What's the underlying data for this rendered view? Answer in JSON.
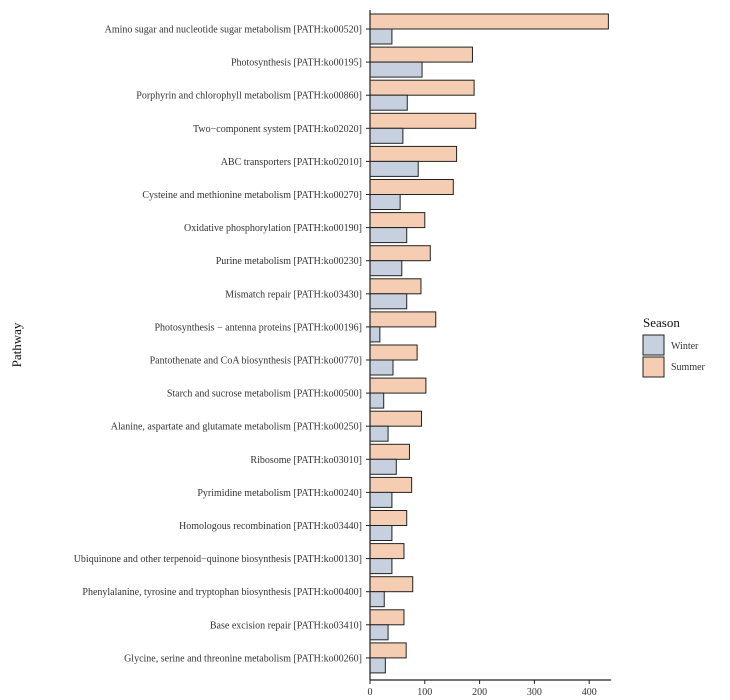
{
  "chart_data": {
    "type": "bar",
    "orientation": "horizontal",
    "title": "",
    "xlabel": "",
    "ylabel": "Pathway",
    "xlim": [
      0,
      440
    ],
    "xticks": [
      0,
      100,
      200,
      300,
      400
    ],
    "categories": [
      "Amino sugar and nucleotide sugar metabolism [PATH:ko00520]",
      "Photosynthesis [PATH:ko00195]",
      "Porphyrin and chlorophyll metabolism [PATH:ko00860]",
      "Two−component system [PATH:ko02020]",
      "ABC transporters [PATH:ko02010]",
      "Cysteine and methionine metabolism [PATH:ko00270]",
      "Oxidative phosphorylation [PATH:ko00190]",
      "Purine metabolism [PATH:ko00230]",
      "Mismatch repair [PATH:ko03430]",
      "Photosynthesis − antenna proteins [PATH:ko00196]",
      "Pantothenate and CoA biosynthesis [PATH:ko00770]",
      "Starch and sucrose metabolism [PATH:ko00500]",
      "Alanine, aspartate and glutamate metabolism [PATH:ko00250]",
      "Ribosome [PATH:ko03010]",
      "Pyrimidine metabolism [PATH:ko00240]",
      "Homologous recombination [PATH:ko03440]",
      "Ubiquinone and other terpenoid−quinone biosynthesis [PATH:ko00130]",
      "Phenylalanine, tyrosine and tryptophan biosynthesis [PATH:ko00400]",
      "Base excision repair [PATH:ko03410]",
      "Glycine, serine and threonine metabolism [PATH:ko00260]"
    ],
    "series": [
      {
        "name": "Summer",
        "color": "#f4cdb2",
        "values": [
          435,
          187,
          190,
          193,
          158,
          152,
          100,
          110,
          93,
          120,
          86,
          102,
          94,
          72,
          76,
          67,
          62,
          78,
          62,
          66
        ]
      },
      {
        "name": "Winter",
        "color": "#c7d0de",
        "values": [
          40,
          95,
          68,
          60,
          88,
          55,
          67,
          58,
          67,
          18,
          42,
          25,
          33,
          48,
          40,
          40,
          40,
          26,
          33,
          28
        ]
      }
    ],
    "legend": {
      "title": "Season",
      "position": "right",
      "entries": [
        "Winter",
        "Summer"
      ]
    }
  }
}
